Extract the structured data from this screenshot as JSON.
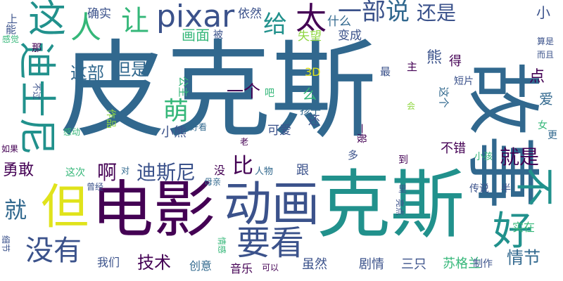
{
  "cloud": {
    "background": "#ffffff",
    "palette": {
      "purple": "#440154",
      "indigo": "#3b528b",
      "blue": "#31688e",
      "teal": "#21918c",
      "green": "#35b779",
      "lime": "#90d743",
      "yellow": "#e0e31b"
    },
    "words": [
      {
        "text": "皮克斯",
        "color": "#31688e",
        "vertical": false
      },
      {
        "text": "故事",
        "color": "#31688e",
        "vertical": true
      },
      {
        "text": "克斯",
        "color": "#21918c",
        "vertical": false
      },
      {
        "text": "电影",
        "color": "#440154",
        "vertical": false
      },
      {
        "text": "但",
        "color": "#e0e31b",
        "vertical": false
      },
      {
        "text": "动画",
        "color": "#3b528b",
        "vertical": false
      },
      {
        "text": "迪士尼",
        "color": "#21918c",
        "vertical": true
      },
      {
        "text": "pixar",
        "color": "#3b528b",
        "vertical": false
      },
      {
        "text": "这",
        "color": "#21918c",
        "vertical": false
      },
      {
        "text": "人",
        "color": "#35b779",
        "vertical": false
      },
      {
        "text": "让",
        "color": "#35b779",
        "vertical": false
      },
      {
        "text": "给",
        "color": "#21918c",
        "vertical": false
      },
      {
        "text": "太",
        "color": "#440154",
        "vertical": false
      },
      {
        "text": "一部",
        "color": "#3b528b",
        "vertical": false
      },
      {
        "text": "说",
        "color": "#31688e",
        "vertical": false
      },
      {
        "text": "还是",
        "color": "#3b528b",
        "vertical": false
      },
      {
        "text": "不",
        "color": "#21918c",
        "vertical": true
      },
      {
        "text": "好",
        "color": "#21918c",
        "vertical": false
      },
      {
        "text": "要看",
        "color": "#3b528b",
        "vertical": false
      },
      {
        "text": "没有",
        "color": "#3b528b",
        "vertical": false
      },
      {
        "text": "萌",
        "color": "#35b779",
        "vertical": false
      },
      {
        "text": "就",
        "color": "#31688e",
        "vertical": false
      },
      {
        "text": "就是",
        "color": "#440154",
        "vertical": false
      },
      {
        "text": "迪斯尼",
        "color": "#3b528b",
        "vertical": false
      },
      {
        "text": "比",
        "color": "#440154",
        "vertical": false
      },
      {
        "text": "技术",
        "color": "#440154",
        "vertical": false
      },
      {
        "text": "情节",
        "color": "#31688e",
        "vertical": false
      },
      {
        "text": "这部",
        "color": "#31688e",
        "vertical": false
      },
      {
        "text": "但是",
        "color": "#31688e",
        "vertical": false
      },
      {
        "text": "一个",
        "color": "#440154",
        "vertical": false
      },
      {
        "text": "啊",
        "color": "#440154",
        "vertical": false
      },
      {
        "text": "勇敢",
        "color": "#440154",
        "vertical": false
      },
      {
        "text": "画面",
        "color": "#35b779",
        "vertical": false
      },
      {
        "text": "确实",
        "color": "#3b528b",
        "vertical": false
      },
      {
        "text": "依然",
        "color": "#3b528b",
        "vertical": false
      },
      {
        "text": "什么",
        "color": "#31688e",
        "vertical": false
      },
      {
        "text": "变成",
        "color": "#3b528b",
        "vertical": false
      },
      {
        "text": "失望",
        "color": "#90d743",
        "vertical": false
      },
      {
        "text": "被",
        "color": "#3b528b",
        "vertical": false
      },
      {
        "text": "小",
        "color": "#3b528b",
        "vertical": false
      },
      {
        "text": "熊",
        "color": "#3b528b",
        "vertical": false
      },
      {
        "text": "点",
        "color": "#440154",
        "vertical": false
      },
      {
        "text": "爱",
        "color": "#31688e",
        "vertical": false
      },
      {
        "text": "得",
        "color": "#440154",
        "vertical": false
      },
      {
        "text": "主",
        "color": "#440154",
        "vertical": false
      },
      {
        "text": "3D",
        "color": "#e0e31b",
        "vertical": false
      },
      {
        "text": "最",
        "color": "#3b528b",
        "vertical": false
      },
      {
        "text": "公主",
        "color": "#35b779",
        "vertical": true
      },
      {
        "text": "吧",
        "color": "#35b779",
        "vertical": false
      },
      {
        "text": "么",
        "color": "#35b779",
        "vertical": false
      },
      {
        "text": "孩子",
        "color": "#31688e",
        "vertical": false
      },
      {
        "text": "这个",
        "color": "#31688e",
        "vertical": true
      },
      {
        "text": "短片",
        "color": "#3b528b",
        "vertical": false
      },
      {
        "text": "算是",
        "color": "#3b528b",
        "vertical": false
      },
      {
        "text": "而且",
        "color": "#3b528b",
        "vertical": false
      },
      {
        "text": "会",
        "color": "#90d743",
        "vertical": false
      },
      {
        "text": "小熊",
        "color": "#3b528b",
        "vertical": false
      },
      {
        "text": "可爱",
        "color": "#3b528b",
        "vertical": false
      },
      {
        "text": "还",
        "color": "#3b528b",
        "vertical": false
      },
      {
        "text": "一般",
        "color": "#440154",
        "vertical": true
      },
      {
        "text": "女",
        "color": "#35b779",
        "vertical": false
      },
      {
        "text": "更",
        "color": "#31688e",
        "vertical": false
      },
      {
        "text": "好看",
        "color": "#31688e",
        "vertical": false
      },
      {
        "text": "作品",
        "color": "#90d743",
        "vertical": true
      },
      {
        "text": "感动",
        "color": "#35b779",
        "vertical": false
      },
      {
        "text": "老",
        "color": "#440154",
        "vertical": false
      },
      {
        "text": "不错",
        "color": "#440154",
        "vertical": false
      },
      {
        "text": "多",
        "color": "#3b528b",
        "vertical": false
      },
      {
        "text": "到",
        "color": "#440154",
        "vertical": false
      },
      {
        "text": "小孩",
        "color": "#35b779",
        "vertical": false
      },
      {
        "text": "如果",
        "color": "#440154",
        "vertical": false
      },
      {
        "text": "这次",
        "color": "#35b779",
        "vertical": false
      },
      {
        "text": "对",
        "color": "#31688e",
        "vertical": false
      },
      {
        "text": "没",
        "color": "#440154",
        "vertical": false
      },
      {
        "text": "跟",
        "color": "#3b528b",
        "vertical": false
      },
      {
        "text": "人物",
        "color": "#31688e",
        "vertical": false
      },
      {
        "text": "曾经",
        "color": "#3b528b",
        "vertical": false
      },
      {
        "text": "母亲",
        "color": "#31688e",
        "vertical": false
      },
      {
        "text": "传说",
        "color": "#3b528b",
        "vertical": false
      },
      {
        "text": "里",
        "color": "#3b528b",
        "vertical": false
      },
      {
        "text": "半",
        "color": "#3b528b",
        "vertical": false
      },
      {
        "text": "亮点",
        "color": "#3b528b",
        "vertical": true
      },
      {
        "text": "实在",
        "color": "#35b779",
        "vertical": false
      },
      {
        "text": "细节",
        "color": "#3b528b",
        "vertical": true
      },
      {
        "text": "情感",
        "color": "#35b779",
        "vertical": true
      },
      {
        "text": "我们",
        "color": "#3b528b",
        "vertical": false
      },
      {
        "text": "创意",
        "color": "#31688e",
        "vertical": false
      },
      {
        "text": "音乐",
        "color": "#440154",
        "vertical": false
      },
      {
        "text": "可以",
        "color": "#440154",
        "vertical": false
      },
      {
        "text": "虽然",
        "color": "#3b528b",
        "vertical": false
      },
      {
        "text": "剧情",
        "color": "#3b528b",
        "vertical": false
      },
      {
        "text": "三只",
        "color": "#3b528b",
        "vertical": false
      },
      {
        "text": "苏格兰",
        "color": "#35b779",
        "vertical": false
      },
      {
        "text": "制作",
        "color": "#3b528b",
        "vertical": false
      },
      {
        "text": "上",
        "color": "#3b528b",
        "vertical": false
      },
      {
        "text": "能",
        "color": "#3b528b",
        "vertical": false
      },
      {
        "text": "感觉",
        "color": "#35b779",
        "vertical": false
      },
      {
        "text": "那",
        "color": "#440154",
        "vertical": false
      },
      {
        "text": "不过",
        "color": "#3b528b",
        "vertical": true
      }
    ]
  }
}
